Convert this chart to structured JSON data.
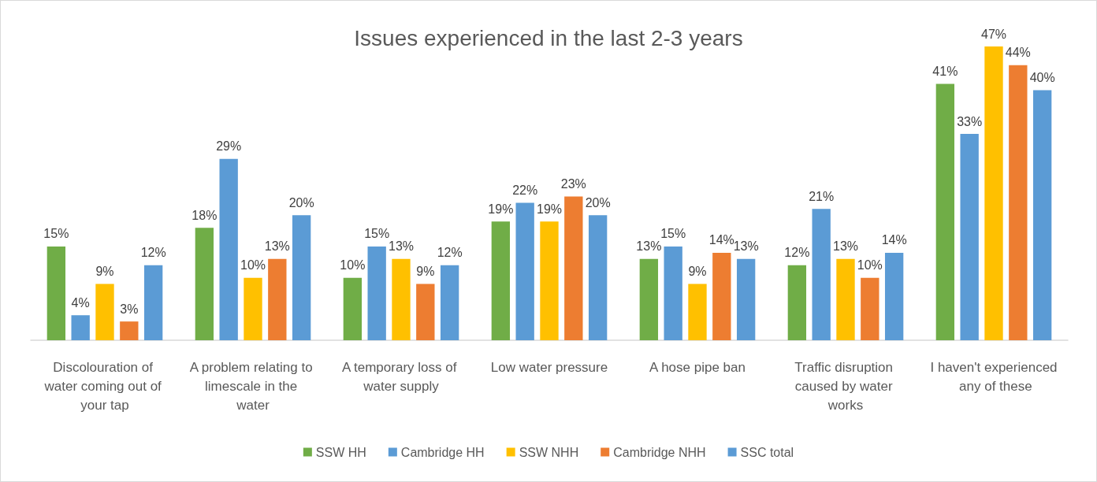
{
  "chart_data": {
    "type": "bar",
    "title": "Issues experienced in the last 2-3 years",
    "categories": [
      "Discolouration of water coming out of your tap",
      "A problem relating to limescale in the water",
      "A temporary loss of water supply",
      "Low water pressure",
      "A hose pipe ban",
      "Traffic disruption caused by water works",
      "I haven't experienced any of these"
    ],
    "series": [
      {
        "name": "SSW HH",
        "color": "#70ad47",
        "values": [
          15,
          18,
          10,
          19,
          13,
          12,
          41
        ],
        "value_labels": [
          "15%",
          "18%",
          "10%",
          "19%",
          "13%",
          "12%",
          "41%"
        ]
      },
      {
        "name": "Cambridge HH",
        "color": "#5b9bd5",
        "values": [
          4,
          29,
          15,
          22,
          15,
          21,
          33
        ],
        "value_labels": [
          "4%",
          "29%",
          "15%",
          "22%",
          "15%",
          "21%",
          "33%"
        ]
      },
      {
        "name": "SSW NHH",
        "color": "#ffc000",
        "values": [
          9,
          10,
          13,
          19,
          9,
          13,
          47
        ],
        "value_labels": [
          "9%",
          "10%",
          "13%",
          "19%",
          "9%",
          "13%",
          "47%"
        ]
      },
      {
        "name": "Cambridge NHH",
        "color": "#ed7d31",
        "values": [
          3,
          13,
          9,
          23,
          14,
          10,
          44
        ],
        "value_labels": [
          "3%",
          "13%",
          "9%",
          "23%",
          "14%",
          "10%",
          "44%"
        ]
      },
      {
        "name": "SSC total",
        "color": "#5b9bd5",
        "values": [
          12,
          20,
          12,
          20,
          13,
          14,
          40
        ],
        "value_labels": [
          "12%",
          "20%",
          "12%",
          "20%",
          "13%",
          "14%",
          "40%"
        ]
      }
    ],
    "legend": "bottom",
    "tick_labels": "x"
  }
}
